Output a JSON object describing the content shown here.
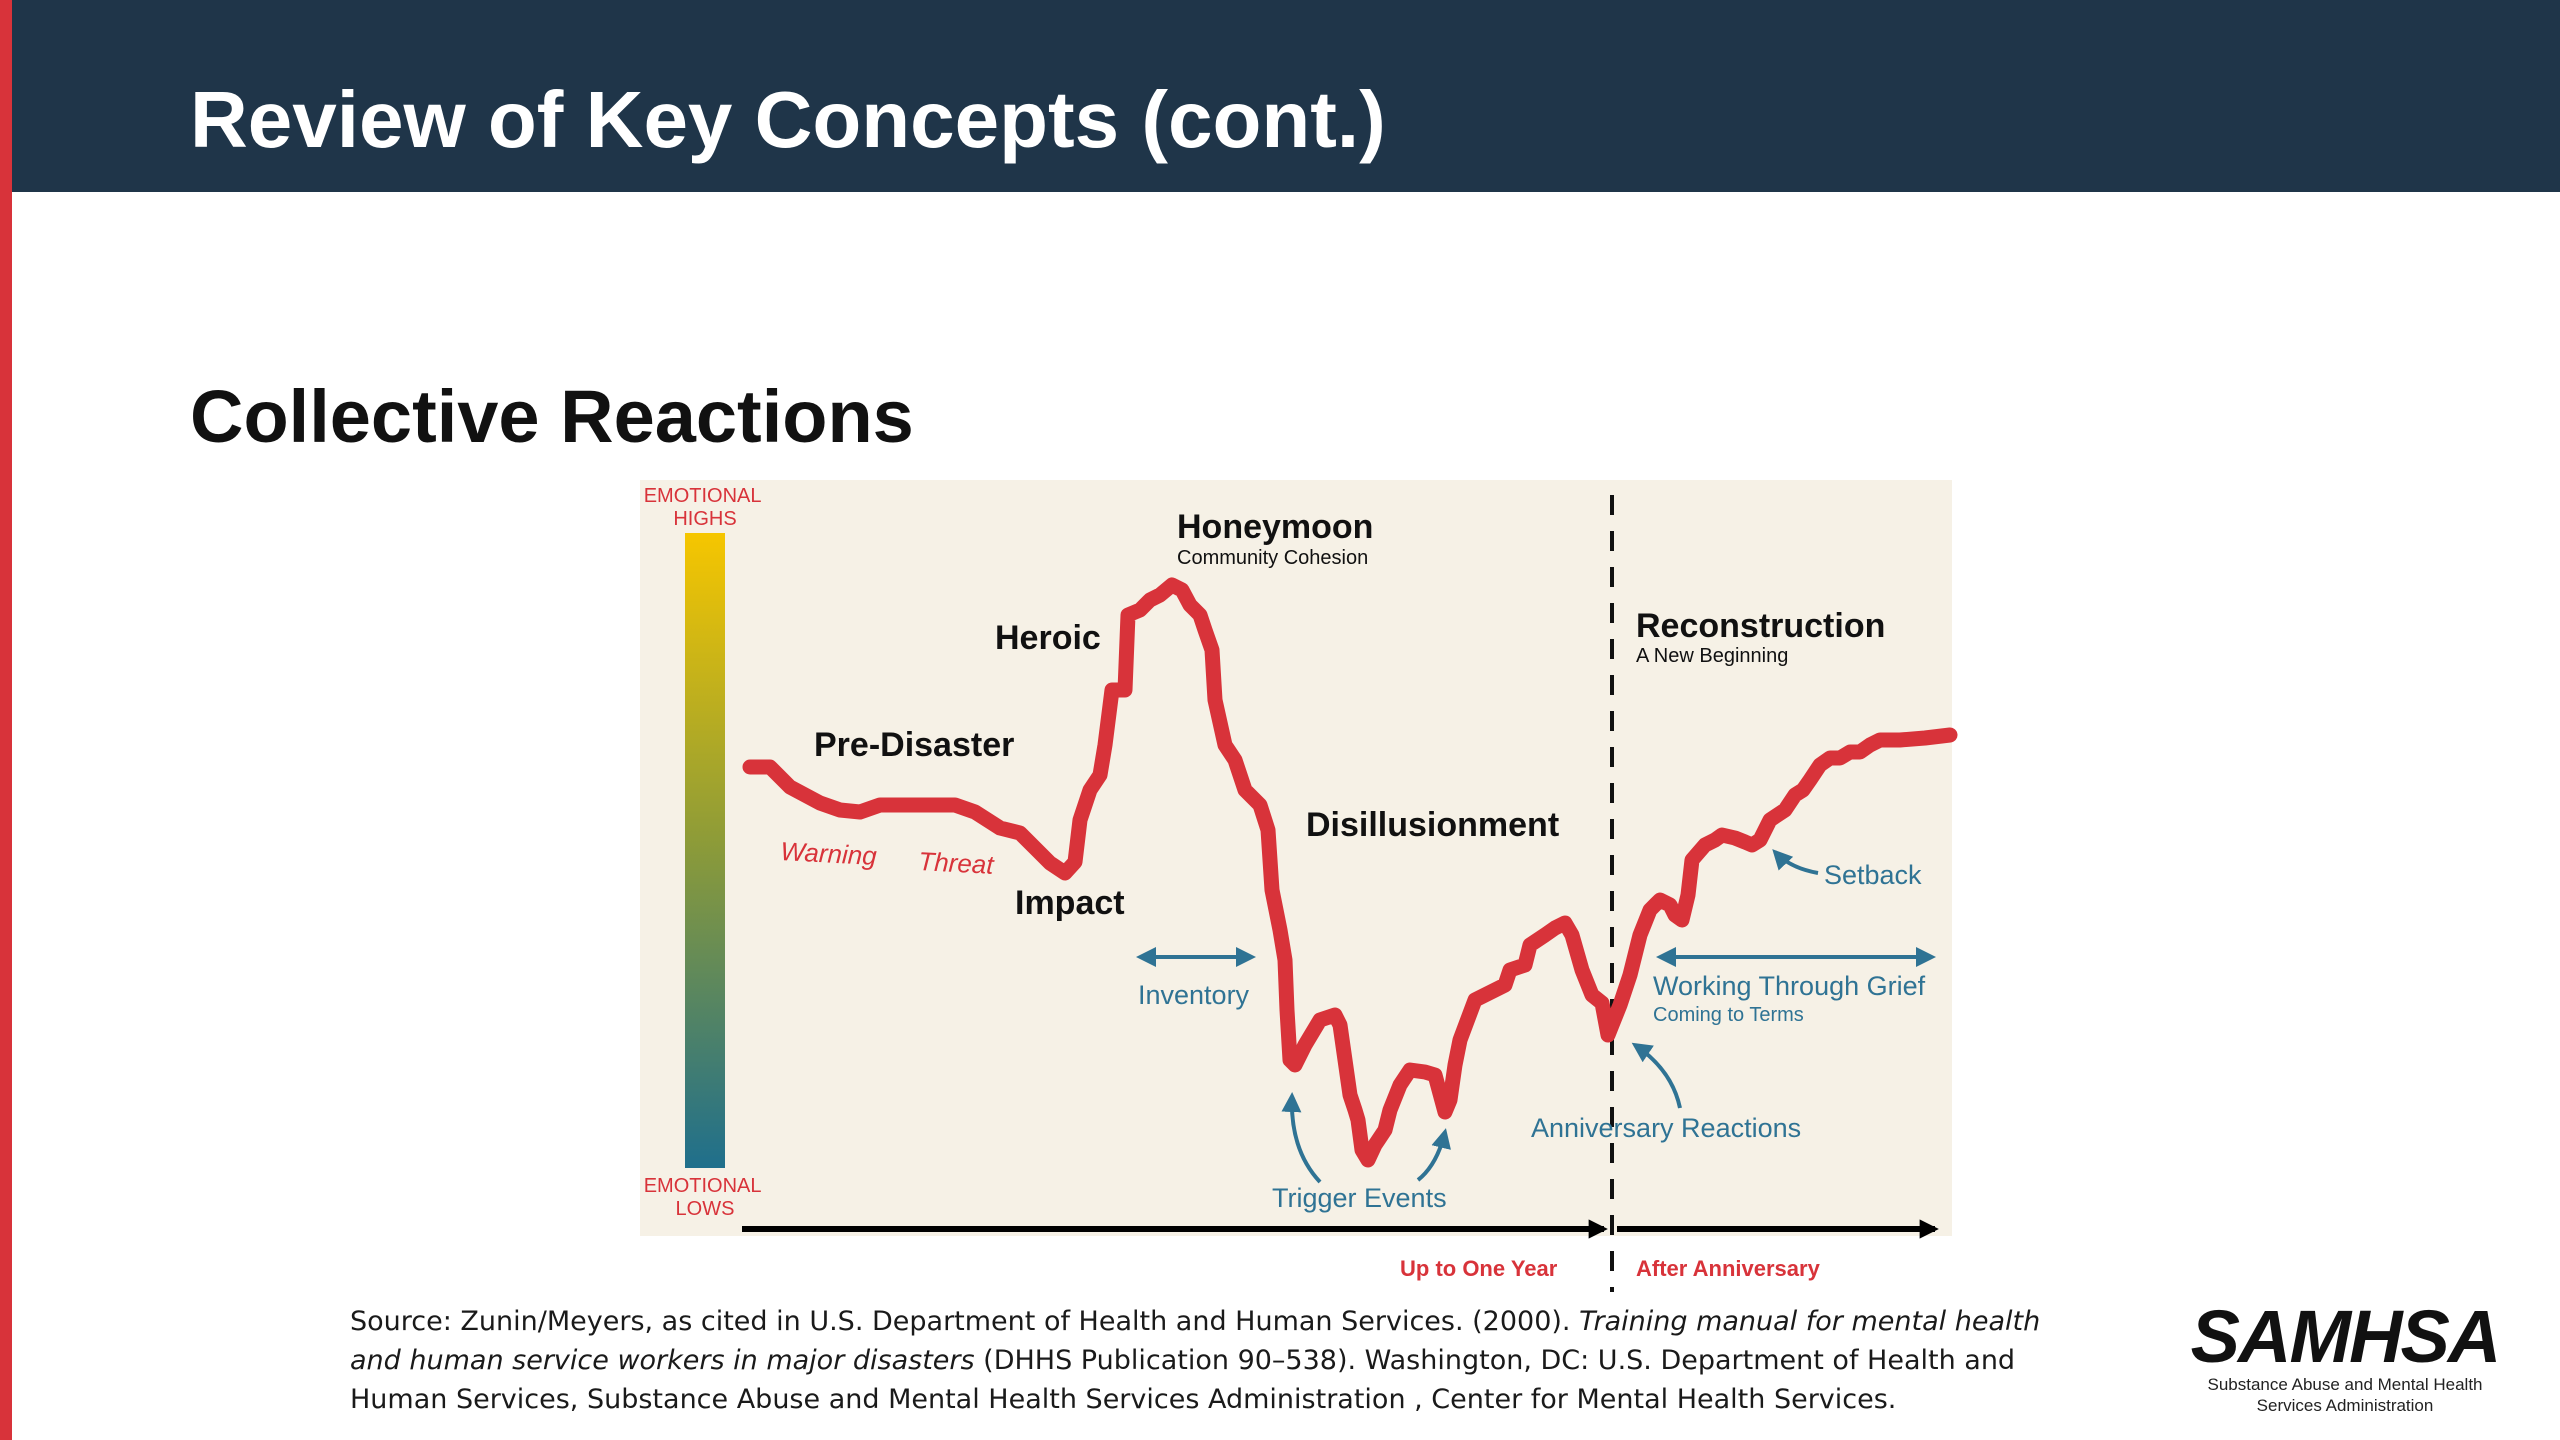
{
  "slide": {
    "title": "Review of Key Concepts (cont.)",
    "subtitle": "Collective Reactions"
  },
  "diagram": {
    "scale_top": [
      "EMOTIONAL",
      "HIGHS"
    ],
    "scale_bottom": [
      "EMOTIONAL",
      "LOWS"
    ],
    "phases": {
      "pre_disaster": "Pre-Disaster",
      "warning": "Warning",
      "threat": "Threat",
      "impact": "Impact",
      "heroic": "Heroic",
      "honeymoon": "Honeymoon",
      "honeymoon_sub": "Community Cohesion",
      "inventory": "Inventory",
      "disillusionment": "Disillusionment",
      "trigger_events": "Trigger Events",
      "reconstruction": "Reconstruction",
      "reconstruction_sub": "A New Beginning",
      "setback": "Setback",
      "working_through_grief": "Working Through Grief",
      "coming_to_terms": "Coming to Terms",
      "anniversary_reactions": "Anniversary Reactions"
    },
    "timeline": {
      "up_to_one_year": "Up to One Year",
      "after_anniversary": "After Anniversary"
    },
    "colors": {
      "curve": "#d8333a",
      "panel": "#f6f1e6",
      "teal": "#2f7394",
      "red_text": "#d8333a",
      "gradient_top": "#f6c600",
      "gradient_bottom": "#1f6f8c"
    }
  },
  "source": {
    "prefix": "Source: Zunin/Meyers, as cited in  U.S. Department of Health and Human Services.  (2000).  ",
    "italic": "Training manual for mental health and human service workers in major disasters",
    "suffix": " (DHHS Publication 90–538).  Washington, DC: U.S. Department of Health and Human Services, Substance Abuse and Mental Health Services Administration , Center for Mental Health Services."
  },
  "logo": {
    "wordmark": "SAMHSA",
    "tagline_1": "Substance Abuse and Mental Health",
    "tagline_2": "Services Administration"
  }
}
